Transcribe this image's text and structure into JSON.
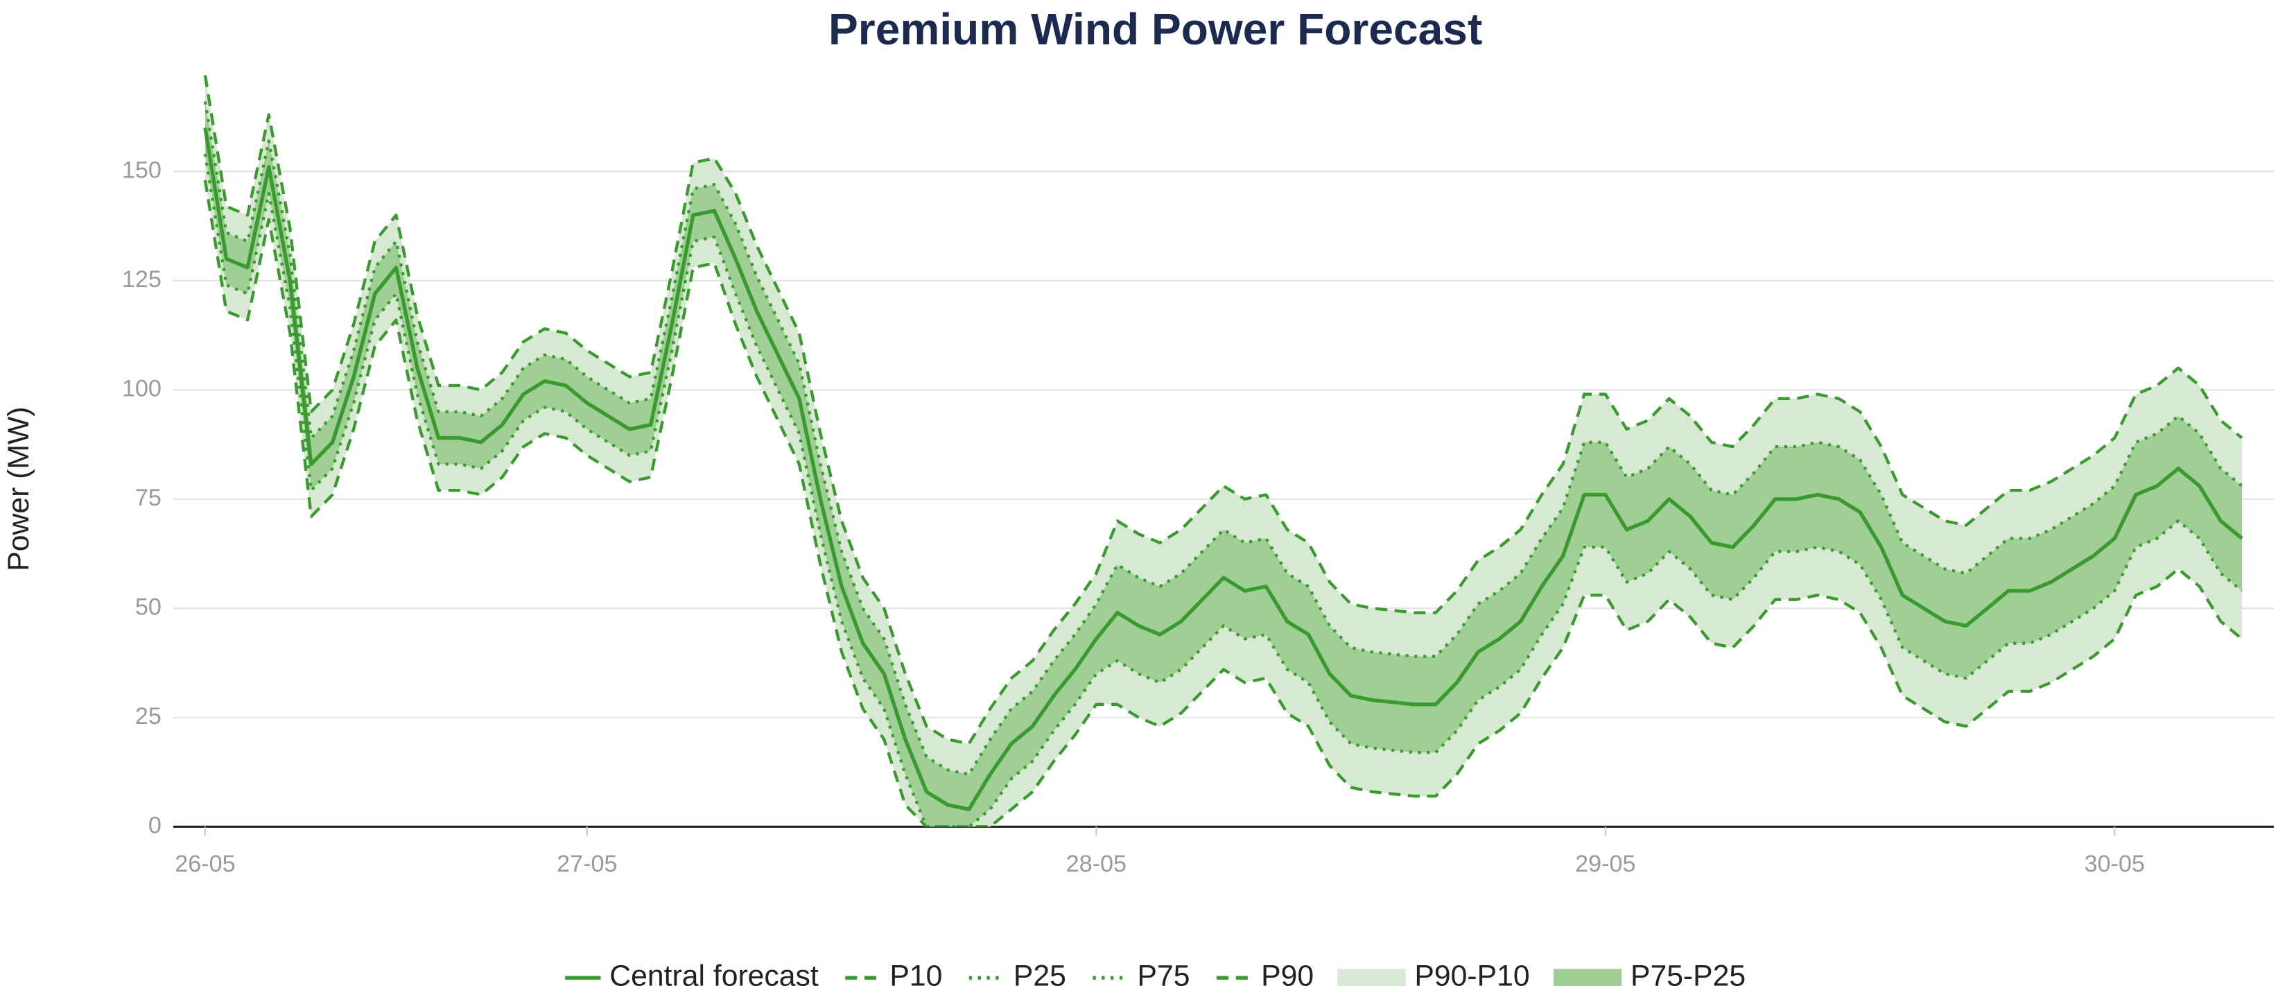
{
  "chart_data": {
    "type": "line",
    "title": "Premium Wind Power Forecast",
    "y_label": "Power (MW)",
    "x": [
      6,
      7,
      8,
      9,
      10,
      11,
      12,
      13,
      14,
      15,
      16,
      17,
      18,
      19,
      20,
      21,
      22,
      23,
      24,
      25,
      26,
      27,
      28,
      29,
      30,
      31,
      32,
      33,
      34,
      35,
      36,
      37,
      38,
      39,
      40,
      41,
      42,
      43,
      44,
      45,
      46,
      47,
      48,
      49,
      50,
      51,
      52,
      53,
      54,
      55,
      56,
      57,
      58,
      59,
      60,
      61,
      62,
      63,
      64,
      65,
      66,
      67,
      68,
      69,
      70,
      71,
      72,
      73,
      74,
      75,
      76,
      77,
      78,
      79,
      80,
      81,
      82,
      83,
      84,
      85,
      86,
      87,
      88,
      89,
      90,
      91,
      92,
      93,
      94,
      95,
      96,
      97,
      98,
      99,
      100,
      101,
      102
    ],
    "xlim": [
      4.5,
      103.5
    ],
    "xticks": [
      {
        "value": 6,
        "label": "26-05"
      },
      {
        "value": 24,
        "label": "27-05"
      },
      {
        "value": 48,
        "label": "28-05"
      },
      {
        "value": 72,
        "label": "29-05"
      },
      {
        "value": 96,
        "label": "30-05"
      }
    ],
    "ylim": [
      0,
      175
    ],
    "yticks": [
      0,
      25,
      50,
      75,
      100,
      125,
      150
    ],
    "grid": true,
    "series": [
      {
        "name": "Central forecast",
        "color": "#3a9a2f",
        "dash": "solid",
        "values": [
          160,
          130,
          128,
          151,
          125,
          83,
          88,
          103,
          122,
          128,
          105,
          89,
          89,
          88,
          92,
          99,
          102,
          101,
          97,
          94,
          91,
          92,
          115,
          140,
          141,
          130,
          118,
          108,
          98,
          75,
          55,
          42,
          35,
          20,
          8,
          5,
          4,
          12,
          19,
          23,
          30,
          36,
          43,
          49,
          46,
          44,
          47,
          52,
          57,
          54,
          55,
          47,
          44,
          35,
          30,
          29,
          28.5,
          28,
          28,
          33,
          40,
          43,
          47,
          55,
          62,
          76,
          76,
          68,
          70,
          75,
          71,
          65,
          64,
          69,
          75,
          75,
          76,
          75,
          72,
          64,
          53,
          50,
          47,
          46,
          50,
          54,
          54,
          56,
          59,
          62,
          66,
          76,
          78,
          82,
          78,
          70,
          66
        ]
      },
      {
        "name": "P10",
        "color": "#3a9a2f",
        "dash": "dashed",
        "values": [
          148,
          118,
          116,
          139,
          113,
          71,
          76,
          91,
          110,
          116,
          93,
          77,
          77,
          76,
          80,
          87,
          90,
          89,
          85,
          82,
          79,
          80,
          103,
          128,
          129,
          115,
          103,
          93,
          83,
          60,
          40,
          27,
          20,
          5,
          0,
          0,
          0,
          0,
          4,
          8,
          15,
          21,
          28,
          28,
          25,
          23,
          26,
          31,
          36,
          33,
          34,
          26,
          23,
          14,
          9,
          8,
          7.5,
          7,
          7,
          12,
          19,
          22,
          26,
          34,
          41,
          53,
          53,
          45,
          47,
          52,
          48,
          42,
          41,
          46,
          52,
          52,
          53,
          52,
          49,
          41,
          30,
          27,
          24,
          23,
          27,
          31,
          31,
          33,
          36,
          39,
          43,
          53,
          55,
          59,
          55,
          47,
          43
        ]
      },
      {
        "name": "P25",
        "color": "#3a9a2f",
        "dash": "dotted",
        "values": [
          154,
          124,
          122,
          145,
          119,
          77,
          82,
          97,
          116,
          122,
          99,
          83,
          83,
          82,
          86,
          93,
          96,
          95,
          91,
          88,
          85,
          86,
          109,
          134,
          135,
          122,
          110,
          100,
          90,
          67,
          47,
          34,
          27,
          12,
          0,
          0,
          0,
          4,
          11,
          15,
          22,
          28,
          35,
          38,
          35,
          33,
          36,
          41,
          46,
          43,
          44,
          36,
          33,
          24,
          19,
          18,
          17.5,
          17,
          17,
          22,
          29,
          32,
          36,
          44,
          51,
          64,
          64,
          56,
          58,
          63,
          59,
          53,
          52,
          57,
          63,
          63,
          64,
          63,
          60,
          52,
          41,
          38,
          35,
          34,
          38,
          42,
          42,
          44,
          47,
          50,
          54,
          64,
          66,
          70,
          66,
          58,
          54
        ]
      },
      {
        "name": "P75",
        "color": "#3a9a2f",
        "dash": "dotted",
        "values": [
          166,
          136,
          134,
          157,
          131,
          89,
          94,
          109,
          128,
          134,
          111,
          95,
          95,
          94,
          98,
          105,
          108,
          107,
          103,
          100,
          97,
          98,
          121,
          146,
          147,
          138,
          126,
          116,
          106,
          83,
          63,
          50,
          43,
          28,
          16,
          13,
          12,
          20,
          27,
          31,
          38,
          44,
          51,
          60,
          57,
          55,
          58,
          63,
          68,
          65,
          66,
          58,
          55,
          46,
          41,
          40,
          39.5,
          39,
          39,
          44,
          51,
          54,
          58,
          66,
          73,
          88,
          88,
          80,
          82,
          87,
          83,
          77,
          76,
          81,
          87,
          87,
          88,
          87,
          84,
          76,
          65,
          62,
          59,
          58,
          62,
          66,
          66,
          68,
          71,
          74,
          78,
          88,
          90,
          94,
          90,
          82,
          78
        ]
      },
      {
        "name": "P90",
        "color": "#3a9a2f",
        "dash": "dashed",
        "values": [
          172,
          142,
          140,
          163,
          137,
          95,
          100,
          115,
          134,
          140,
          117,
          101,
          101,
          100,
          104,
          111,
          114,
          113,
          109,
          106,
          103,
          104,
          127,
          152,
          153,
          145,
          133,
          123,
          113,
          90,
          70,
          57,
          50,
          35,
          23,
          20,
          19,
          27,
          34,
          38,
          45,
          51,
          58,
          70,
          67,
          65,
          68,
          73,
          78,
          75,
          76,
          68,
          65,
          56,
          51,
          50,
          49.5,
          49,
          49,
          54,
          61,
          64,
          68,
          76,
          83,
          99,
          99,
          91,
          93,
          98,
          94,
          88,
          87,
          92,
          98,
          98,
          99,
          98,
          95,
          87,
          76,
          73,
          70,
          69,
          73,
          77,
          77,
          79,
          82,
          85,
          89,
          99,
          101,
          105,
          101,
          93,
          89
        ]
      }
    ],
    "bands": [
      {
        "name": "P90-P10",
        "color": "#d7e9d2",
        "between": [
          "P10",
          "P90"
        ]
      },
      {
        "name": "P75-P25",
        "color": "#9fcf94",
        "between": [
          "P25",
          "P75"
        ]
      }
    ]
  }
}
